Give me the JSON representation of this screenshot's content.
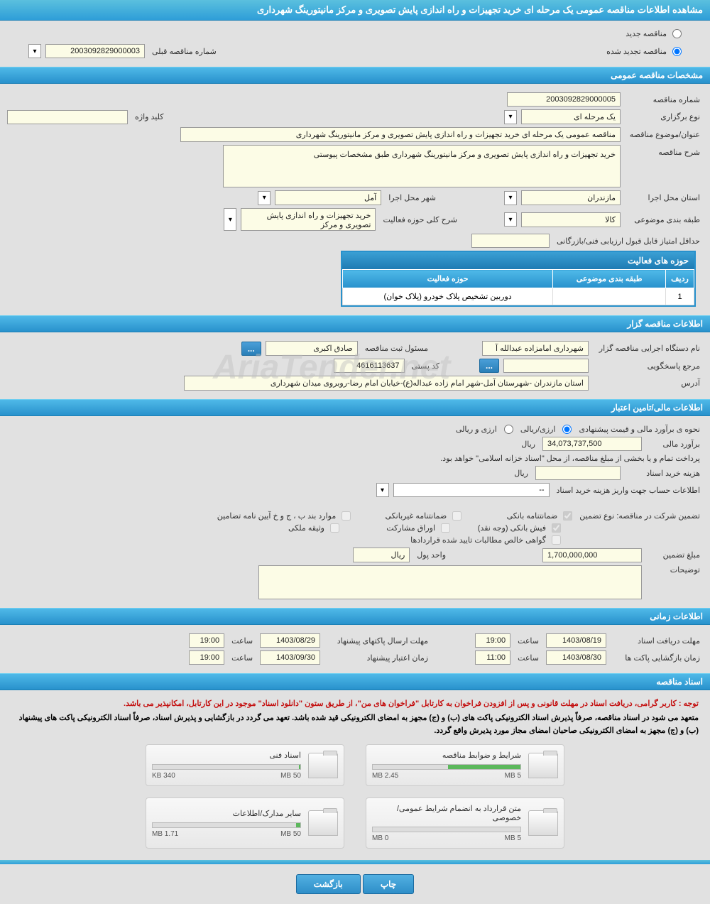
{
  "header": {
    "title": "مشاهده اطلاعات مناقصه عمومی یک مرحله ای خرید تجهیزات و راه اندازی پایش تصویری و مرکز مانیتورینگ شهرداری"
  },
  "tender_type": {
    "new_label": "مناقصه جدید",
    "renewed_label": "مناقصه تجدید شده",
    "prev_number_label": "شماره مناقصه قبلی",
    "prev_number_value": "2003092829000003"
  },
  "sections": {
    "general": "مشخصات مناقصه عمومی",
    "organizer": "اطلاعات مناقصه گزار",
    "financial": "اطلاعات مالی/تامین اعتبار",
    "timing": "اطلاعات زمانی",
    "documents": "اسناد مناقصه"
  },
  "general": {
    "tender_no_label": "شماره مناقصه",
    "tender_no": "2003092829000005",
    "hold_type_label": "نوع برگزاری",
    "hold_type": "یک مرحله ای",
    "keyword_label": "کلید واژه",
    "keyword": "",
    "subject_label": "عنوان/موضوع مناقصه",
    "subject_value": "مناقصه عمومی یک مرحله ای خرید تجهیزات و راه اندازی پایش تصویری و مرکز مانیتورینگ شهرداری",
    "desc_label": "شرح مناقصه",
    "desc_value": "خرید تجهیزات و راه اندازی پایش تصویری و مرکز مانیتورینگ شهرداری طبق مشخصات پیوستی",
    "province_label": "استان محل اجرا",
    "province_value": "مازندران",
    "city_label": "شهر محل اجرا",
    "city_value": "آمل",
    "category_label": "طبقه بندی موضوعی",
    "category_value": "کالا",
    "activity_scope_label": "شرح کلی حوزه فعالیت",
    "activity_scope_value": "خرید تجهیزات و راه اندازی پایش تصویری و مرکز",
    "min_score_label": "حداقل امتیاز قابل قبول ارزیابی فنی/بازرگانی",
    "min_score_value": ""
  },
  "activity_table": {
    "title": "حوزه های فعالیت",
    "col_row": "ردیف",
    "col_category": "طبقه بندی موضوعی",
    "col_scope": "حوزه فعالیت",
    "row1_idx": "1",
    "row1_cat": "",
    "row1_scope": "دوربین تشخیص پلاک خودرو (پلاک خوان)"
  },
  "organizer": {
    "exec_label": "نام دستگاه اجرایی مناقصه گزار",
    "exec_value": "شهرداری امامزاده عبدالله آ",
    "registrar_label": "مسئول ثبت مناقصه",
    "registrar_value": "صادق اکبری",
    "ref_label": "مرجع پاسخگویی",
    "ref_value": "",
    "postcode_label": "کد پستی",
    "postcode_value": "4616113637",
    "address_label": "آدرس",
    "address_value": "استان مازندران -شهرستان آمل-شهر امام زاده عبداله(ع)-خیابان امام رضا-روبروی میدان شهرداری"
  },
  "financial": {
    "est_method_label": "نحوه ی برآورد مالی و قیمت پیشنهادی",
    "rial_label": "ارزی/ریالی",
    "curr_label": "ارزی و ریالی",
    "est_label": "برآورد مالی",
    "est_value": "34,073,737,500",
    "est_unit": "ریال",
    "treasury_note": "پرداخت تمام و یا بخشی از مبلغ مناقصه، از محل \"اسناد خزانه اسلامی\" خواهد بود.",
    "doc_fee_label": "هزینه خرید اسناد",
    "doc_fee_unit": "ریال",
    "account_label": "اطلاعات حساب جهت واریز هزینه خرید اسناد",
    "account_value": "--",
    "guarantee_header": "تضمین شرکت در مناقصه:   نوع تضمین",
    "g_bank": "ضمانتنامه بانکی",
    "g_nonbank": "ضمانتنامه غیربانکی",
    "g_cases": "موارد بند ب ، ج و خ آیین نامه تضامین",
    "g_cash": "فیش بانکی (وجه نقد)",
    "g_bonds": "اوراق مشارکت",
    "g_property": "وثیقه ملکی",
    "g_cert": "گواهی خالص مطالبات تایید شده قراردادها",
    "amount_label": "مبلغ تضمین",
    "amount_value": "1,700,000,000",
    "unit_label": "واحد پول",
    "unit_value": "ریال",
    "notes_label": "توضیحات"
  },
  "timing": {
    "receive_label": "مهلت دریافت اسناد",
    "receive_date": "1403/08/19",
    "receive_time_label": "ساعت",
    "receive_time": "19:00",
    "submit_label": "مهلت ارسال پاکتهای پیشنهاد",
    "submit_date": "1403/08/29",
    "submit_time_label": "ساعت",
    "submit_time": "19:00",
    "open_label": "زمان بازگشایی پاکت ها",
    "open_date": "1403/08/30",
    "open_time_label": "ساعت",
    "open_time": "11:00",
    "valid_label": "زمان اعتبار پیشنهاد",
    "valid_date": "1403/09/30",
    "valid_time_label": "ساعت",
    "valid_time": "19:00"
  },
  "documents": {
    "warning_red": "توجه : کاربر گرامی، دریافت اسناد در مهلت قانونی و پس از افزودن فراخوان به کارتابل \"فراخوان های من\"، از طریق ستون \"دانلود اسناد\" موجود در این کارتابل، امکانپذیر می باشد.",
    "warning_black": "متعهد می شود در اسناد مناقصه، صرفاً پذیرش اسناد الکترونیکی پاکت های (ب) و (ج) مجهز به امضای الکترونیکی قید شده باشد. تعهد می گردد در بازگشایی و پذیرش اسناد، صرفاً اسناد الکترونیکی پاکت های پیشنهاد (ب) و (ج) مجهز به امضای الکترونیکی صاحبان امضای مجاز مورد پذیرش واقع گردد.",
    "card1_title": "شرایط و ضوابط مناقصه",
    "card1_used": "2.45 MB",
    "card1_total": "5 MB",
    "card1_pct": 49,
    "card2_title": "اسناد فنی",
    "card2_used": "340 KB",
    "card2_total": "50 MB",
    "card2_pct": 1,
    "card3_title": "متن قرارداد به انضمام شرایط عمومی/خصوصی",
    "card3_used": "0 MB",
    "card3_total": "5 MB",
    "card3_pct": 0,
    "card4_title": "سایر مدارک/اطلاعات",
    "card4_used": "1.71 MB",
    "card4_total": "50 MB",
    "card4_pct": 3
  },
  "footer": {
    "print": "چاپ",
    "back": "بازگشت"
  },
  "misc": {
    "ellipsis": "...",
    "watermark": "AriaTender.net"
  }
}
